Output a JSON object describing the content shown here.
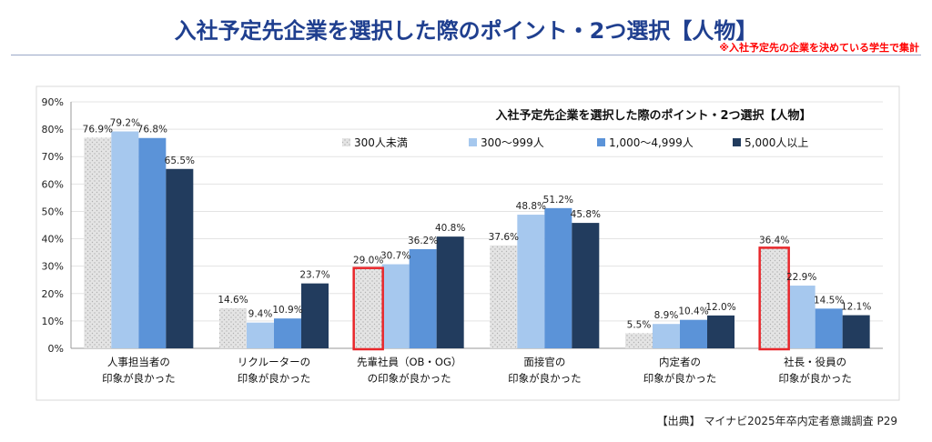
{
  "header": {
    "title": "入社予定先企業を選択した際のポイント・2つ選択【人物】",
    "note": "※入社予定先の企業を決めている学生で集計"
  },
  "footer": {
    "source": "【出典】 マイナビ2025年卒内定者意識調査 P29"
  },
  "colors": {
    "s300": "#e0e0e0",
    "s999": "#a6c8ee",
    "s4999": "#5b93d8",
    "s5000": "#223c5e",
    "highlight": "#e8262a",
    "axis": "#999999",
    "grid": "#e3e3e3"
  },
  "chart_data": {
    "type": "bar",
    "title": "入社予定先企業を選択した際のポイント・2つ選択【人物】",
    "ylim": [
      0,
      90
    ],
    "yticks": [
      "0%",
      "10%",
      "20%",
      "30%",
      "40%",
      "50%",
      "60%",
      "70%",
      "80%",
      "90%"
    ],
    "grid": true,
    "legend_position": "top-right",
    "categories": [
      [
        "人事担当者の",
        "印象が良かった"
      ],
      [
        "リクルーターの",
        "印象が良かった"
      ],
      [
        "先輩社員（OB・OG）",
        "の印象が良かった"
      ],
      [
        "面接官の",
        "印象が良かった"
      ],
      [
        "内定者の",
        "印象が良かった"
      ],
      [
        "社長・役員の",
        "印象が良かった"
      ]
    ],
    "series": [
      {
        "name": "300人未満",
        "values": [
          76.9,
          14.6,
          29.0,
          37.6,
          5.5,
          36.4
        ],
        "labels": [
          "76.9%",
          "14.6%",
          "29.0%",
          "37.6%",
          "5.5%",
          "36.4%"
        ]
      },
      {
        "name": "300～999人",
        "values": [
          79.2,
          9.4,
          30.7,
          48.8,
          8.9,
          22.9
        ],
        "labels": [
          "79.2%",
          "9.4%",
          "30.7%",
          "48.8%",
          "8.9%",
          "22.9%"
        ]
      },
      {
        "name": "1,000～4,999人",
        "values": [
          76.8,
          10.9,
          36.2,
          51.2,
          10.4,
          14.5
        ],
        "labels": [
          "76.8%",
          "10.9%",
          "36.2%",
          "51.2%",
          "10.4%",
          "14.5%"
        ]
      },
      {
        "name": "5,000人以上",
        "values": [
          65.5,
          23.7,
          40.8,
          45.8,
          12.0,
          12.1
        ],
        "labels": [
          "65.5%",
          "23.7%",
          "40.8%",
          "45.8%",
          "12.0%",
          "12.1%"
        ]
      }
    ],
    "highlighted_bars": [
      {
        "category": 2,
        "series": 0
      },
      {
        "category": 5,
        "series": 0
      }
    ]
  }
}
